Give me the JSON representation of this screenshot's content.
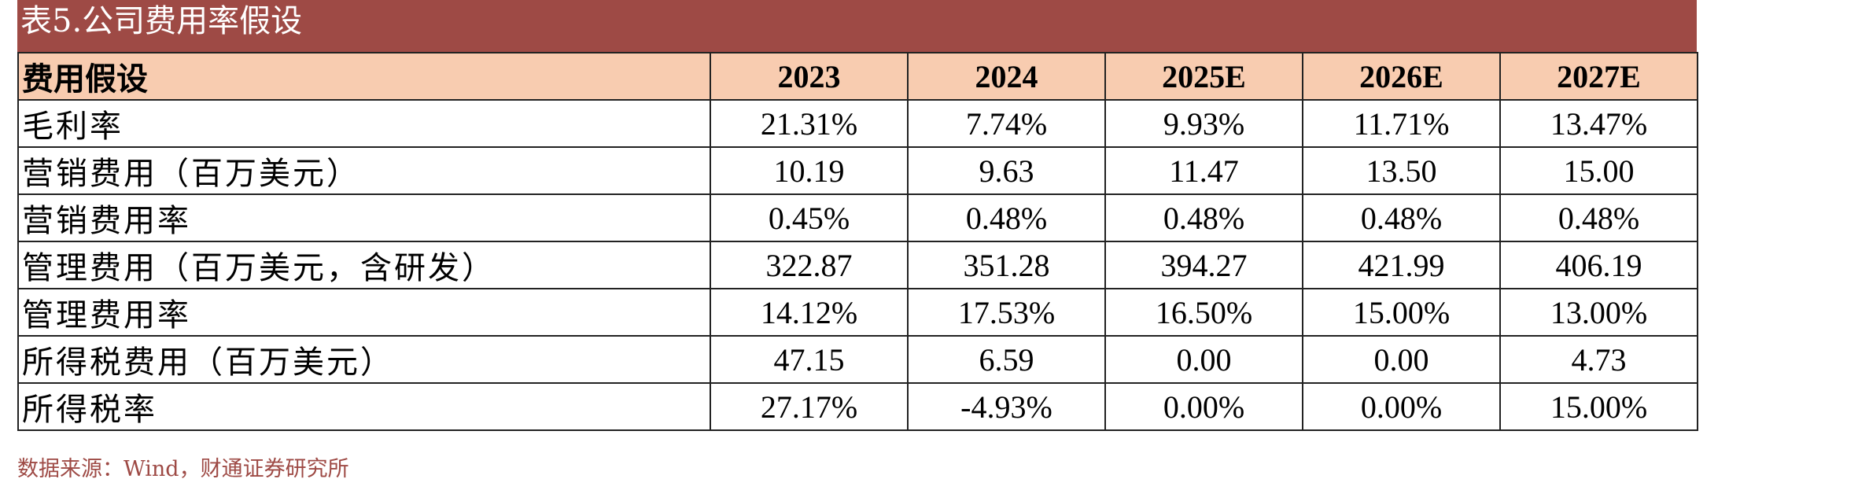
{
  "title": "表5.公司费用率假设",
  "table": {
    "header": {
      "label": "费用假设",
      "years": [
        "2023",
        "2024",
        "2025E",
        "2026E",
        "2027E"
      ]
    },
    "rows": [
      {
        "label": "毛利率",
        "values": [
          "21.31%",
          "7.74%",
          "9.93%",
          "11.71%",
          "13.47%"
        ]
      },
      {
        "label": "营销费用（百万美元）",
        "values": [
          "10.19",
          "9.63",
          "11.47",
          "13.50",
          "15.00"
        ]
      },
      {
        "label": "营销费用率",
        "values": [
          "0.45%",
          "0.48%",
          "0.48%",
          "0.48%",
          "0.48%"
        ]
      },
      {
        "label": "管理费用（百万美元，含研发）",
        "values": [
          "322.87",
          "351.28",
          "394.27",
          "421.99",
          "406.19"
        ]
      },
      {
        "label": "管理费用率",
        "values": [
          "14.12%",
          "17.53%",
          "16.50%",
          "15.00%",
          "13.00%"
        ]
      },
      {
        "label": "所得税费用（百万美元）",
        "values": [
          "47.15",
          "6.59",
          "0.00",
          "0.00",
          "4.73"
        ]
      },
      {
        "label": "所得税率",
        "values": [
          "27.17%",
          "-4.93%",
          "0.00%",
          "0.00%",
          "15.00%"
        ]
      }
    ]
  },
  "source": "数据来源：Wind，财通证券研究所"
}
